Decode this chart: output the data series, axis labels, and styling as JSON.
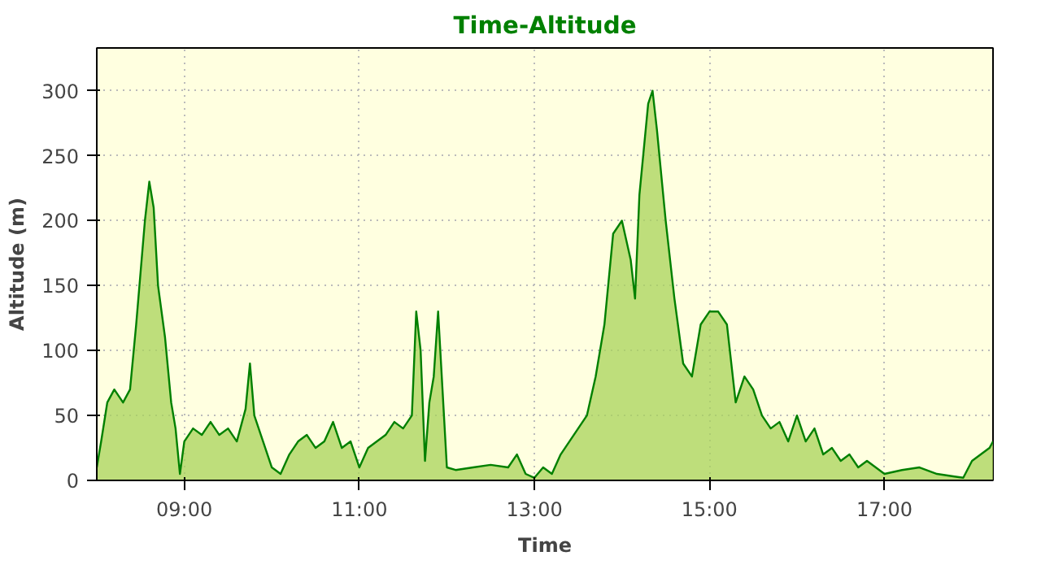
{
  "chart_data": {
    "type": "area",
    "title": "Time-Altitude",
    "xlabel": "Time",
    "ylabel": "Altitude (m)",
    "xlim": [
      8.0,
      18.24
    ],
    "ylim": [
      0,
      333
    ],
    "xticks": [
      {
        "value": 9,
        "label": "09:00"
      },
      {
        "value": 11,
        "label": "11:00"
      },
      {
        "value": 13,
        "label": "13:00"
      },
      {
        "value": 15,
        "label": "15:00"
      },
      {
        "value": 17,
        "label": "17:00"
      }
    ],
    "yticks": [
      0,
      50,
      100,
      150,
      200,
      250,
      300
    ],
    "grid": true,
    "line_style": "solid",
    "marker": "none",
    "x": [
      8.0,
      8.05,
      8.12,
      8.2,
      8.25,
      8.3,
      8.38,
      8.45,
      8.5,
      8.55,
      8.6,
      8.65,
      8.7,
      8.78,
      8.85,
      8.9,
      8.95,
      9.0,
      9.1,
      9.2,
      9.3,
      9.4,
      9.5,
      9.6,
      9.7,
      9.75,
      9.8,
      9.9,
      10.0,
      10.1,
      10.2,
      10.3,
      10.4,
      10.5,
      10.6,
      10.7,
      10.8,
      10.9,
      11.0,
      11.1,
      11.2,
      11.3,
      11.4,
      11.5,
      11.6,
      11.65,
      11.7,
      11.75,
      11.8,
      11.85,
      11.9,
      11.95,
      12.0,
      12.1,
      12.3,
      12.5,
      12.7,
      12.8,
      12.9,
      13.0,
      13.1,
      13.2,
      13.3,
      13.4,
      13.5,
      13.6,
      13.7,
      13.8,
      13.9,
      14.0,
      14.1,
      14.15,
      14.2,
      14.3,
      14.35,
      14.4,
      14.5,
      14.6,
      14.7,
      14.8,
      14.9,
      15.0,
      15.1,
      15.2,
      15.3,
      15.4,
      15.5,
      15.6,
      15.7,
      15.8,
      15.9,
      16.0,
      16.1,
      16.2,
      16.3,
      16.4,
      16.5,
      16.6,
      16.7,
      16.8,
      16.9,
      17.0,
      17.2,
      17.4,
      17.6,
      17.8,
      17.9,
      18.0,
      18.1,
      18.2,
      18.24
    ],
    "series": [
      {
        "color": "#008000",
        "values": [
          10,
          30,
          60,
          70,
          65,
          60,
          70,
          120,
          160,
          200,
          230,
          210,
          150,
          110,
          60,
          40,
          5,
          30,
          40,
          35,
          45,
          35,
          40,
          30,
          55,
          90,
          50,
          30,
          10,
          5,
          20,
          30,
          35,
          25,
          30,
          45,
          25,
          30,
          10,
          25,
          30,
          35,
          45,
          40,
          50,
          130,
          100,
          15,
          60,
          80,
          130,
          70,
          10,
          8,
          10,
          12,
          10,
          20,
          5,
          2,
          10,
          5,
          20,
          30,
          40,
          50,
          80,
          120,
          190,
          200,
          170,
          140,
          220,
          290,
          300,
          270,
          200,
          140,
          90,
          80,
          120,
          130,
          130,
          120,
          60,
          80,
          70,
          50,
          40,
          45,
          30,
          50,
          30,
          40,
          20,
          25,
          15,
          20,
          10,
          15,
          10,
          5,
          8,
          10,
          5,
          3,
          2,
          15,
          20,
          25,
          30
        ]
      }
    ]
  }
}
